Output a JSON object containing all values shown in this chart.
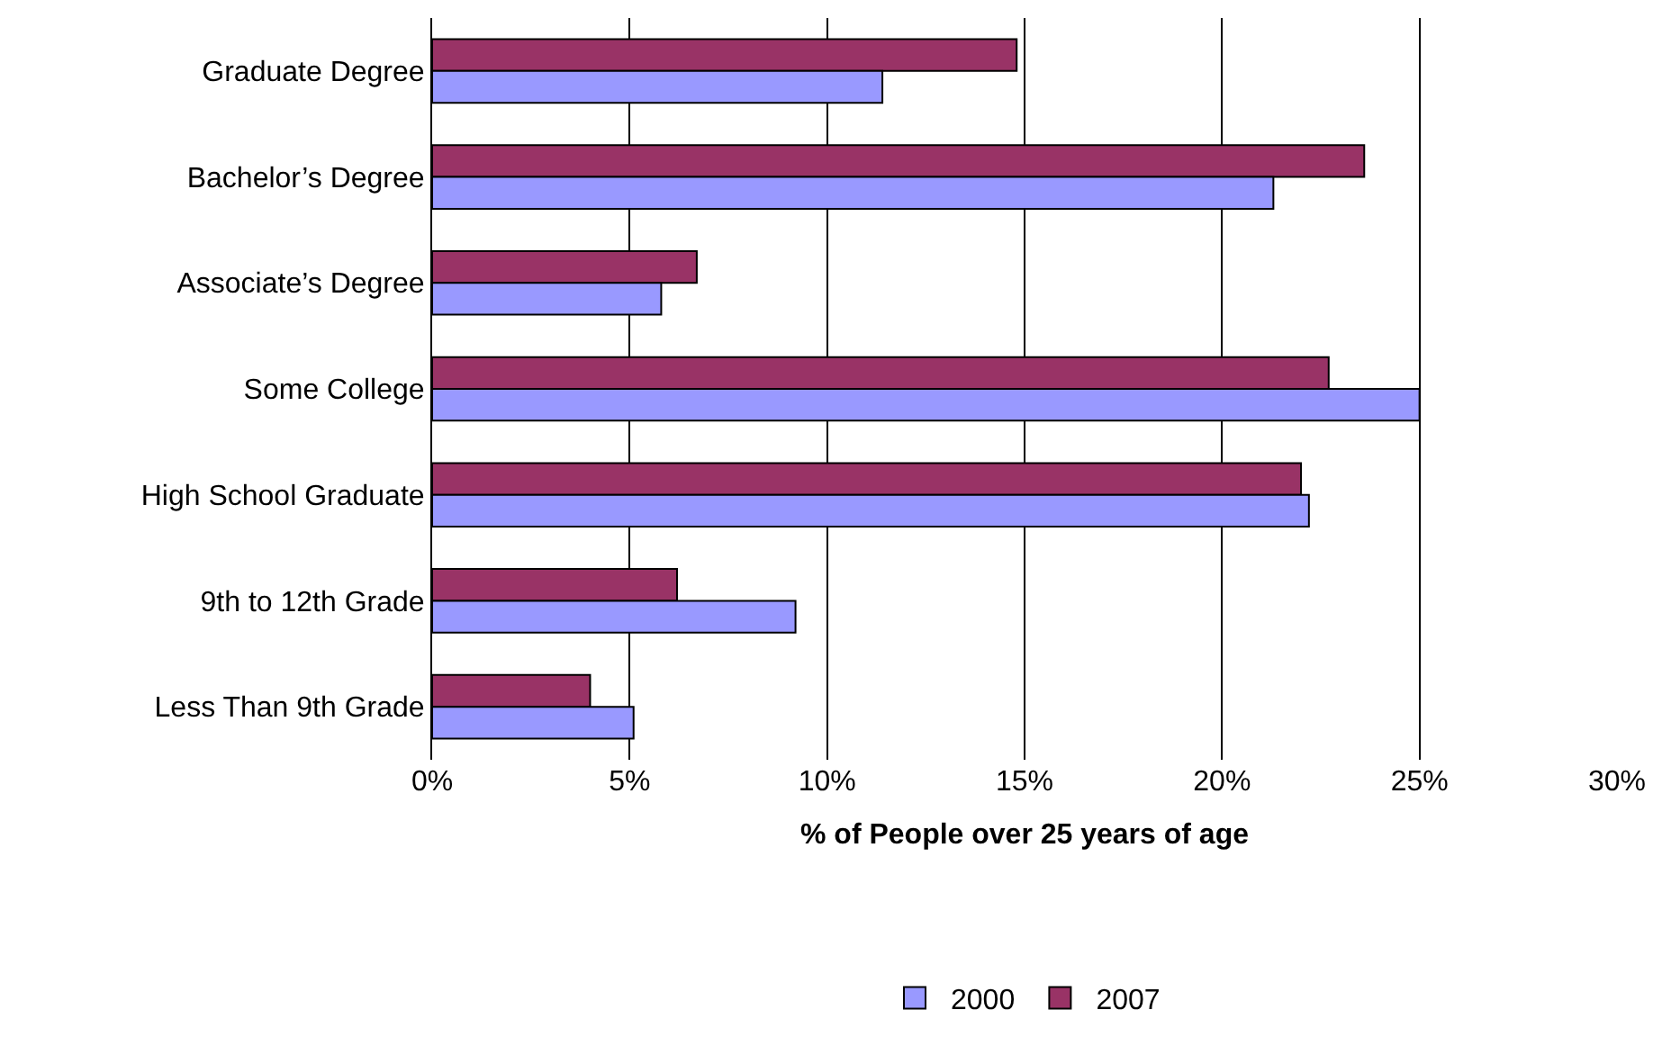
{
  "chart_data": {
    "type": "bar",
    "orientation": "horizontal",
    "xlabel": "% of People over 25 years of age",
    "categories": [
      "Graduate Degree",
      "Bachelor’s Degree",
      "Associate’s Degree",
      "Some College",
      "High School Graduate",
      "9th to 12th Grade",
      "Less Than 9th Grade"
    ],
    "series": [
      {
        "name": "2000",
        "color": "#9999ff",
        "values": [
          11.4,
          21.3,
          5.8,
          25.0,
          22.2,
          9.2,
          5.1
        ]
      },
      {
        "name": "2007",
        "color": "#993366",
        "values": [
          14.8,
          23.6,
          6.7,
          22.7,
          22.0,
          6.2,
          4.0
        ]
      }
    ],
    "xlim": [
      0,
      30
    ],
    "xticks": [
      {
        "value": 0,
        "label": "0%"
      },
      {
        "value": 5,
        "label": "5%"
      },
      {
        "value": 10,
        "label": "10%"
      },
      {
        "value": 15,
        "label": "15%"
      },
      {
        "value": 20,
        "label": "20%"
      },
      {
        "value": 25,
        "label": "25%"
      },
      {
        "value": 30,
        "label": "30%"
      }
    ],
    "grid": "x",
    "legend": "bottom"
  }
}
